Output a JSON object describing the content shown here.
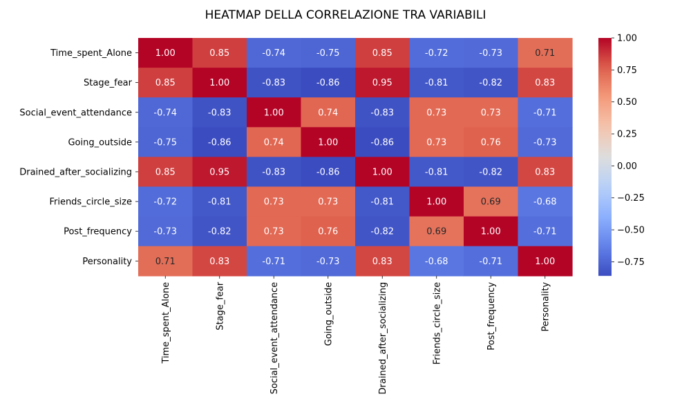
{
  "chart_data": {
    "type": "heatmap",
    "title": "HEATMAP DELLA CORRELAZIONE TRA VARIABILI",
    "xlabel": "",
    "ylabel": "",
    "variables": [
      "Time_spent_Alone",
      "Stage_fear",
      "Social_event_attendance",
      "Going_outside",
      "Drained_after_socializing",
      "Friends_circle_size",
      "Post_frequency",
      "Personality"
    ],
    "matrix": [
      [
        1.0,
        0.85,
        -0.74,
        -0.75,
        0.85,
        -0.72,
        -0.73,
        0.71
      ],
      [
        0.85,
        1.0,
        -0.83,
        -0.86,
        0.95,
        -0.81,
        -0.82,
        0.83
      ],
      [
        -0.74,
        -0.83,
        1.0,
        0.74,
        -0.83,
        0.73,
        0.73,
        -0.71
      ],
      [
        -0.75,
        -0.86,
        0.74,
        1.0,
        -0.86,
        0.73,
        0.76,
        -0.73
      ],
      [
        0.85,
        0.95,
        -0.83,
        -0.86,
        1.0,
        -0.81,
        -0.82,
        0.83
      ],
      [
        -0.72,
        -0.81,
        0.73,
        0.73,
        -0.81,
        1.0,
        0.69,
        -0.68
      ],
      [
        -0.73,
        -0.82,
        0.73,
        0.76,
        -0.82,
        0.69,
        1.0,
        -0.71
      ],
      [
        0.71,
        0.83,
        -0.71,
        -0.73,
        0.83,
        -0.68,
        -0.71,
        1.0
      ]
    ],
    "value_format": "2 decimals",
    "colormap": "coolwarm",
    "colorbar": {
      "range": [
        -0.86,
        1.0
      ],
      "ticks": [
        "1.00",
        "0.75",
        "0.50",
        "0.25",
        "0.00",
        "−0.25",
        "−0.50",
        "−0.75"
      ],
      "tick_values": [
        1.0,
        0.75,
        0.5,
        0.25,
        0.0,
        -0.25,
        -0.5,
        -0.75
      ]
    },
    "grid": false
  }
}
